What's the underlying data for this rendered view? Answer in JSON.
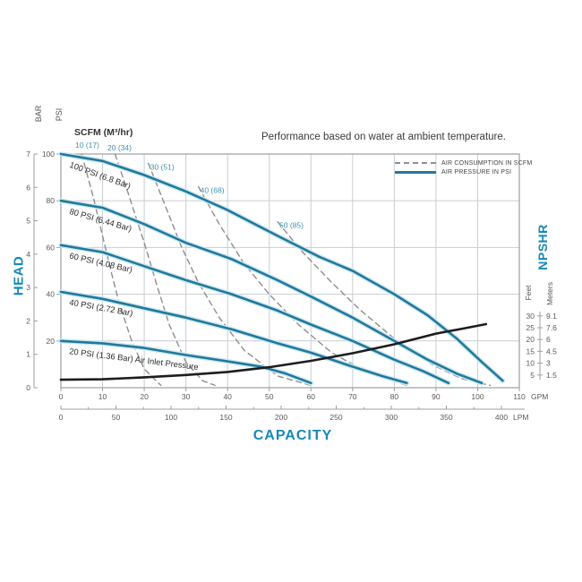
{
  "title": "Performance based on water at ambient temperature.",
  "colors": {
    "curve_teal": "#20799c",
    "curve_halo": "#cfe8f2",
    "label_teal": "#3f93b0",
    "axis_title_blue": "#1789b5",
    "dashed_gray": "#8e8e8e",
    "black_curve": "#1d1d1d",
    "grid": "#c9ced3",
    "frame": "#9aa0a5",
    "tick_text": "#5a5a5a",
    "curve_label_text": "#2b2b2b"
  },
  "legend": {
    "air_consumption_label": "AIR CONSUMPTION IN SCFM",
    "air_pressure_label": "AIR PRESSURE IN PSI"
  },
  "scfm_header": {
    "label": "SCFM (M³/hr)",
    "top_labels": [
      "10 (17)",
      "20 (34)"
    ]
  },
  "axes": {
    "head": {
      "title": "HEAD",
      "bar_label": "BAR",
      "psi_label": "PSI",
      "bar_ticks": [
        0,
        1,
        2,
        3,
        4,
        5,
        6,
        7
      ],
      "psi_ticks": [
        20,
        40,
        60,
        80,
        100
      ]
    },
    "capacity": {
      "title": "CAPACITY",
      "gpm_ticks": [
        0,
        10,
        20,
        30,
        40,
        50,
        60,
        70,
        80,
        90,
        100,
        110
      ],
      "gpm_unit": "GPM",
      "lpm_ticks": [
        0,
        50,
        100,
        150,
        200,
        250,
        300,
        350,
        400
      ],
      "lpm_unit": "LPM"
    },
    "npshr": {
      "title": "NPSHR",
      "feet_label": "Feet",
      "meters_label": "Meters",
      "feet_ticks": [
        30,
        25,
        20,
        15,
        10,
        5
      ],
      "meters_ticks": [
        "9.1",
        "7.6",
        "6",
        "4.5",
        "3",
        "1.5"
      ]
    }
  },
  "chart_data": {
    "type": "line",
    "x_axis": {
      "label": "CAPACITY",
      "unit_primary": "GPM",
      "range_gpm": [
        0,
        110
      ],
      "unit_secondary": "LPM",
      "range_lpm": [
        0,
        400
      ]
    },
    "y_axis_left": {
      "label": "HEAD",
      "unit_primary": "PSI",
      "range_psi": [
        0,
        100
      ],
      "unit_secondary": "BAR",
      "range_bar": [
        0,
        7
      ]
    },
    "y_axis_right": {
      "label": "NPSHR",
      "unit_primary": "Feet",
      "range_feet": [
        0,
        30
      ],
      "unit_secondary": "Meters",
      "range_meters": [
        0,
        9.1
      ]
    },
    "grid": "on",
    "legend_position": "top-right",
    "pressure_curves": [
      {
        "name": "100 PSI (6.8 Bar)",
        "psi": 100,
        "points_gpm_psi": [
          [
            0,
            100
          ],
          [
            10,
            97
          ],
          [
            20,
            91
          ],
          [
            30,
            84
          ],
          [
            40,
            76
          ],
          [
            52,
            65
          ],
          [
            62,
            56
          ],
          [
            70,
            50
          ],
          [
            80,
            40
          ],
          [
            88,
            31
          ],
          [
            95,
            21
          ],
          [
            101,
            11
          ],
          [
            106,
            3
          ]
        ]
      },
      {
        "name": "80 PSI (5.44 Bar)",
        "psi": 80,
        "points_gpm_psi": [
          [
            0,
            80
          ],
          [
            10,
            77
          ],
          [
            20,
            70
          ],
          [
            30,
            62
          ],
          [
            41,
            55
          ],
          [
            52,
            46
          ],
          [
            60,
            39
          ],
          [
            70,
            30
          ],
          [
            80,
            20
          ],
          [
            88,
            12
          ],
          [
            95,
            6
          ],
          [
            101,
            2
          ]
        ]
      },
      {
        "name": "60 PSI (4.08 Bar)",
        "psi": 60,
        "points_gpm_psi": [
          [
            0,
            61
          ],
          [
            10,
            58
          ],
          [
            20,
            52
          ],
          [
            30,
            46
          ],
          [
            41,
            40
          ],
          [
            52,
            33
          ],
          [
            60,
            27
          ],
          [
            70,
            20
          ],
          [
            80,
            12
          ],
          [
            87,
            7
          ],
          [
            93,
            2
          ]
        ]
      },
      {
        "name": "40 PSI (2.72 Bar)",
        "psi": 40,
        "points_gpm_psi": [
          [
            0,
            41
          ],
          [
            10,
            38
          ],
          [
            20,
            34
          ],
          [
            30,
            30
          ],
          [
            41,
            25
          ],
          [
            52,
            19
          ],
          [
            60,
            15
          ],
          [
            70,
            9
          ],
          [
            77,
            5
          ],
          [
            83,
            2
          ]
        ]
      },
      {
        "name": "20 PSI (1.36 Bar) Air Inlet Pressure",
        "psi": 20,
        "points_gpm_psi": [
          [
            0,
            20
          ],
          [
            10,
            19
          ],
          [
            20,
            17
          ],
          [
            30,
            14
          ],
          [
            41,
            11
          ],
          [
            48,
            9
          ],
          [
            54,
            6
          ],
          [
            60,
            2
          ]
        ]
      }
    ],
    "air_consumption_curves": [
      {
        "name": "10 (17)",
        "scfm": 10,
        "m3hr": 17,
        "label_inside": false,
        "points_gpm_psi": [
          [
            5,
            100
          ],
          [
            8,
            80
          ],
          [
            10,
            65
          ],
          [
            12,
            50
          ],
          [
            14,
            36
          ],
          [
            17,
            20
          ],
          [
            20,
            8
          ],
          [
            24,
            1
          ]
        ]
      },
      {
        "name": "20 (34)",
        "scfm": 20,
        "m3hr": 34,
        "label_inside": false,
        "points_gpm_psi": [
          [
            13,
            100
          ],
          [
            16,
            84
          ],
          [
            20,
            62
          ],
          [
            23,
            44
          ],
          [
            26,
            27
          ],
          [
            30,
            11
          ],
          [
            34,
            3
          ],
          [
            37,
            1
          ]
        ]
      },
      {
        "name": "30 (51)",
        "scfm": 30,
        "m3hr": 51,
        "label_inside": true,
        "points_gpm_psi": [
          [
            21,
            96
          ],
          [
            25,
            78
          ],
          [
            29,
            60
          ],
          [
            33,
            45
          ],
          [
            38,
            30
          ],
          [
            44,
            16
          ],
          [
            52,
            5
          ],
          [
            60,
            1
          ]
        ]
      },
      {
        "name": "40 (68)",
        "scfm": 40,
        "m3hr": 68,
        "label_inside": true,
        "points_gpm_psi": [
          [
            33,
            86
          ],
          [
            38,
            70
          ],
          [
            44,
            53
          ],
          [
            50,
            40
          ],
          [
            57,
            27
          ],
          [
            65,
            15
          ],
          [
            74,
            6
          ],
          [
            83,
            1
          ]
        ]
      },
      {
        "name": "50 (85)",
        "scfm": 50,
        "m3hr": 85,
        "label_inside": true,
        "points_gpm_psi": [
          [
            52,
            71
          ],
          [
            58,
            58
          ],
          [
            65,
            45
          ],
          [
            72,
            33
          ],
          [
            80,
            21
          ],
          [
            89,
            10
          ],
          [
            96,
            4
          ],
          [
            103,
            1
          ]
        ]
      }
    ],
    "npshr_curve": {
      "name": "NPSHR",
      "points_gpm_feet": [
        [
          0,
          3
        ],
        [
          10,
          3.2
        ],
        [
          20,
          4
        ],
        [
          30,
          5
        ],
        [
          40,
          6.3
        ],
        [
          50,
          8.3
        ],
        [
          60,
          11
        ],
        [
          70,
          14.2
        ],
        [
          80,
          18
        ],
        [
          90,
          22.5
        ],
        [
          97,
          24.8
        ],
        [
          102,
          26.5
        ]
      ]
    }
  }
}
